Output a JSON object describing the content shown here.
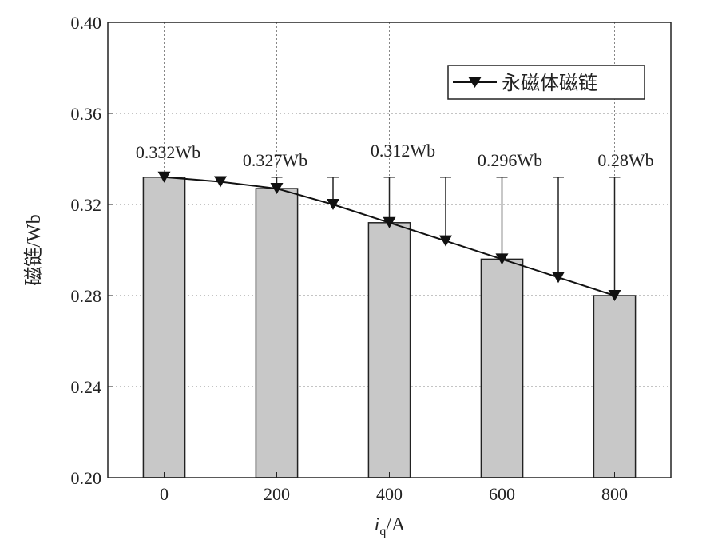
{
  "chart_data": {
    "type": "bar",
    "title": "",
    "xlabel": {
      "var": "i",
      "sub": "q",
      "unit": "/A"
    },
    "ylabel": "磁链/Wb",
    "xlim": [
      -100,
      900
    ],
    "ylim": [
      0.2,
      0.4
    ],
    "xticks": [
      0,
      200,
      400,
      600,
      800
    ],
    "yticks": [
      "0.20",
      "0.24",
      "0.28",
      "0.32",
      "0.36",
      "0.40"
    ],
    "grid": true,
    "bars": {
      "x": [
        0,
        200,
        400,
        600,
        800
      ],
      "values": [
        0.332,
        0.327,
        0.312,
        0.296,
        0.28
      ],
      "color": "#c8c8c8",
      "labels": [
        "0.332Wb",
        "0.327Wb",
        "0.312Wb",
        "0.296Wb",
        "0.28Wb"
      ]
    },
    "series": [
      {
        "name": "永磁体磁链",
        "x": [
          0,
          100,
          200,
          300,
          400,
          500,
          600,
          700,
          800
        ],
        "values": [
          0.332,
          0.33,
          0.327,
          0.32,
          0.312,
          0.304,
          0.296,
          0.288,
          0.28
        ],
        "marker": "triangle-down",
        "color": "#111111",
        "error_top": 0.332
      }
    ],
    "legend": {
      "position": "top-right",
      "entries": [
        "永磁体磁链"
      ]
    }
  }
}
